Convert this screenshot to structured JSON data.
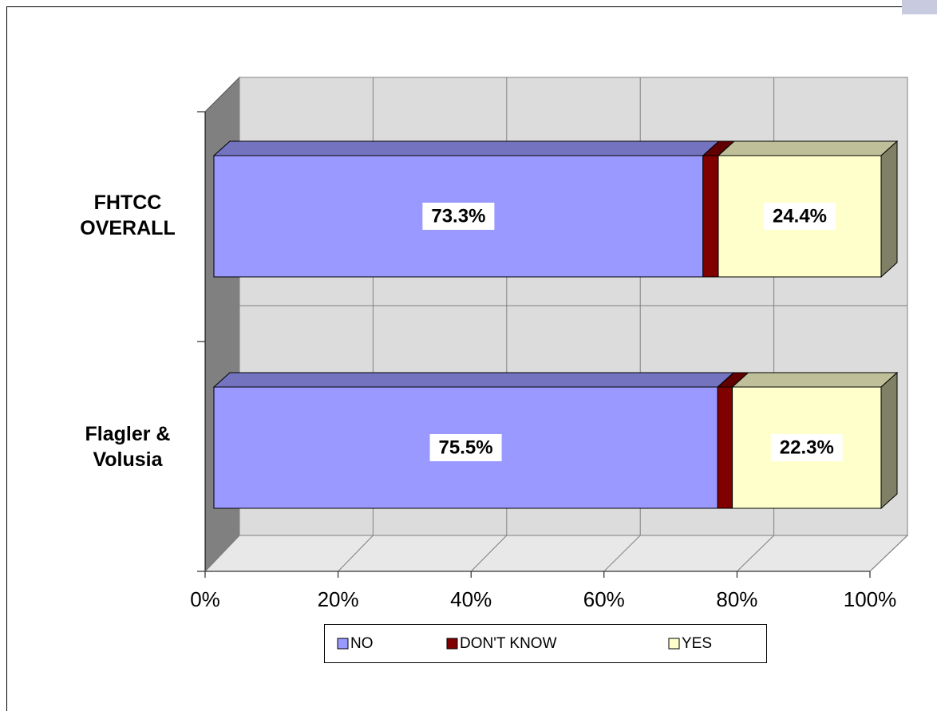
{
  "chart_data": {
    "type": "bar3d_stacked_horizontal",
    "categories": [
      "FHTCC OVERALL",
      "Flagler & Volusia"
    ],
    "series": [
      {
        "name": "NO",
        "color": "#9999ff",
        "values": [
          73.3,
          75.5
        ],
        "value_labels": [
          "73.3%",
          "75.5%"
        ]
      },
      {
        "name": "DON'T KNOW",
        "color": "#800000",
        "values": [
          2.3,
          2.2
        ]
      },
      {
        "name": "YES",
        "color": "#ffffcc",
        "values": [
          24.4,
          22.3
        ],
        "value_labels": [
          "24.4%",
          "22.3%"
        ]
      }
    ],
    "xlim": [
      0,
      100
    ],
    "xticks": [
      {
        "value": 0,
        "label": "0%"
      },
      {
        "value": 20,
        "label": "20%"
      },
      {
        "value": 40,
        "label": "40%"
      },
      {
        "value": 60,
        "label": "60%"
      },
      {
        "value": 80,
        "label": "80%"
      },
      {
        "value": 100,
        "label": "100%"
      }
    ],
    "grid": true,
    "legend": "bottom"
  }
}
